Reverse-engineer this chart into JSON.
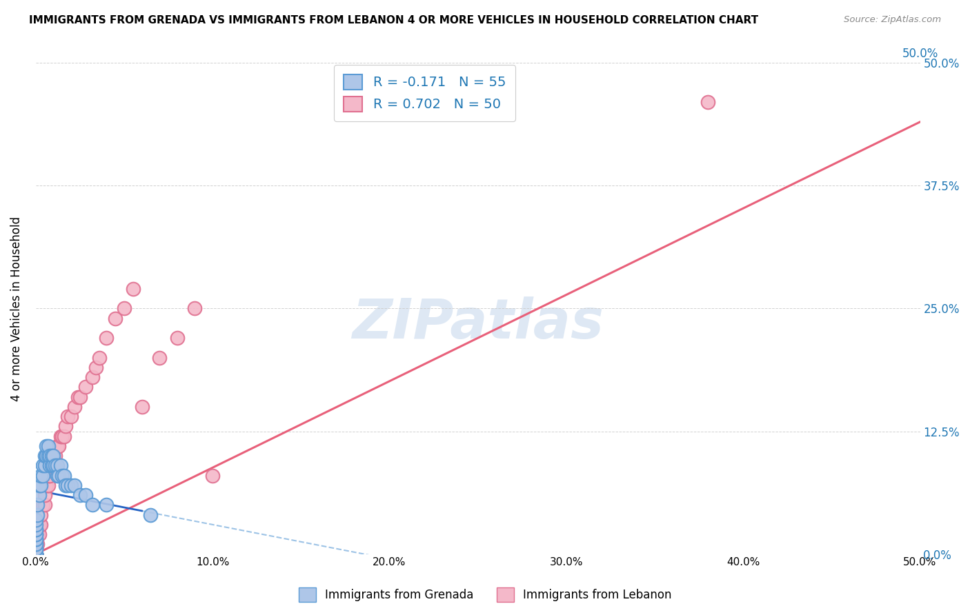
{
  "title": "IMMIGRANTS FROM GRENADA VS IMMIGRANTS FROM LEBANON 4 OR MORE VEHICLES IN HOUSEHOLD CORRELATION CHART",
  "source": "Source: ZipAtlas.com",
  "ylabel": "4 or more Vehicles in Household",
  "xaxis_ticks": [
    0.0,
    0.1,
    0.2,
    0.3,
    0.4,
    0.5
  ],
  "xaxis_labels": [
    "0.0%",
    "10.0%",
    "20.0%",
    "30.0%",
    "40.0%",
    "50.0%"
  ],
  "yaxis_ticks": [
    0.0,
    0.125,
    0.25,
    0.375,
    0.5
  ],
  "yaxis_labels": [
    "0.0%",
    "12.5%",
    "25.0%",
    "37.5%",
    "50.0%"
  ],
  "right_yaxis_labels": [
    "0.0%",
    "12.5%",
    "25.0%",
    "37.5%",
    "50.0%"
  ],
  "top_xaxis_label": "50.0%",
  "xlim": [
    0.0,
    0.5
  ],
  "ylim": [
    0.0,
    0.5
  ],
  "grenada_color": "#aec6e8",
  "grenada_edge_color": "#5b9bd5",
  "lebanon_color": "#f4b8c9",
  "lebanon_edge_color": "#e07090",
  "grenada_R": -0.171,
  "grenada_N": 55,
  "lebanon_R": 0.702,
  "lebanon_N": 50,
  "watermark_text": "ZIPatlas",
  "watermark_color": "#d0dff0",
  "grenada_line_color": "#2563c4",
  "grenada_line_solid_end": 0.06,
  "grenada_line_intercept": 0.065,
  "grenada_line_slope": -0.35,
  "lebanon_line_color": "#e8607a",
  "lebanon_line_intercept": 0.0,
  "lebanon_line_slope": 0.88,
  "grenada_x": [
    0.0,
    0.0,
    0.0,
    0.0,
    0.0,
    0.0,
    0.0,
    0.0,
    0.0,
    0.0,
    0.0,
    0.0,
    0.0,
    0.0,
    0.0,
    0.0,
    0.0,
    0.0,
    0.001,
    0.001,
    0.002,
    0.002,
    0.003,
    0.003,
    0.004,
    0.004,
    0.005,
    0.005,
    0.006,
    0.006,
    0.006,
    0.007,
    0.007,
    0.008,
    0.008,
    0.009,
    0.009,
    0.01,
    0.01,
    0.011,
    0.012,
    0.012,
    0.013,
    0.014,
    0.015,
    0.016,
    0.017,
    0.018,
    0.02,
    0.022,
    0.025,
    0.028,
    0.032,
    0.04,
    0.065
  ],
  "grenada_y": [
    0.0,
    0.0,
    0.0,
    0.0,
    0.0,
    0.0,
    0.005,
    0.005,
    0.01,
    0.01,
    0.015,
    0.015,
    0.02,
    0.02,
    0.025,
    0.025,
    0.03,
    0.035,
    0.04,
    0.05,
    0.06,
    0.07,
    0.07,
    0.08,
    0.08,
    0.09,
    0.09,
    0.1,
    0.1,
    0.1,
    0.11,
    0.1,
    0.11,
    0.09,
    0.1,
    0.09,
    0.1,
    0.09,
    0.1,
    0.09,
    0.08,
    0.09,
    0.08,
    0.09,
    0.08,
    0.08,
    0.07,
    0.07,
    0.07,
    0.07,
    0.06,
    0.06,
    0.05,
    0.05,
    0.04
  ],
  "lebanon_x": [
    0.0,
    0.0,
    0.0,
    0.0,
    0.0,
    0.0,
    0.0,
    0.001,
    0.001,
    0.002,
    0.002,
    0.003,
    0.003,
    0.004,
    0.005,
    0.005,
    0.006,
    0.007,
    0.007,
    0.008,
    0.008,
    0.009,
    0.01,
    0.01,
    0.011,
    0.012,
    0.013,
    0.014,
    0.015,
    0.016,
    0.017,
    0.018,
    0.02,
    0.022,
    0.024,
    0.025,
    0.028,
    0.032,
    0.034,
    0.036,
    0.04,
    0.045,
    0.05,
    0.055,
    0.06,
    0.07,
    0.08,
    0.09,
    0.38,
    0.1
  ],
  "lebanon_y": [
    0.0,
    0.0,
    0.0,
    0.0,
    0.0,
    0.005,
    0.01,
    0.01,
    0.02,
    0.02,
    0.03,
    0.03,
    0.04,
    0.05,
    0.05,
    0.06,
    0.07,
    0.07,
    0.08,
    0.08,
    0.09,
    0.09,
    0.1,
    0.1,
    0.1,
    0.11,
    0.11,
    0.12,
    0.12,
    0.12,
    0.13,
    0.14,
    0.14,
    0.15,
    0.16,
    0.16,
    0.17,
    0.18,
    0.19,
    0.2,
    0.22,
    0.24,
    0.25,
    0.27,
    0.15,
    0.2,
    0.22,
    0.25,
    0.46,
    0.08
  ]
}
